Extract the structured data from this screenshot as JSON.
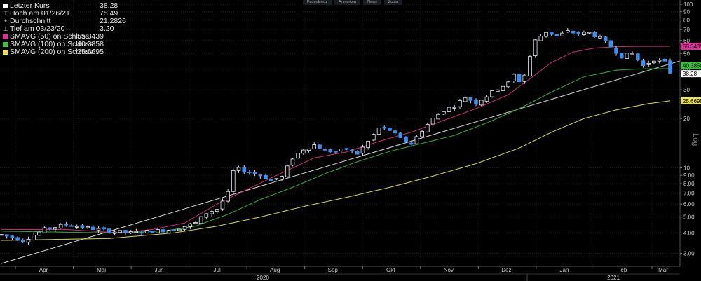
{
  "legend": [
    {
      "marker": "square",
      "color": "#ffffff",
      "label": "Letzter Kurs",
      "value": "38.28"
    },
    {
      "marker": "tee",
      "color": "#bbbbbb",
      "label": "Hoch am 01/26/21",
      "value": "75.49"
    },
    {
      "marker": "plus",
      "color": "#bbbbbb",
      "label": "Durchschnitt",
      "value": "21.2826"
    },
    {
      "marker": "bottom",
      "color": "#bbbbbb",
      "label": "Tief am 03/23/20",
      "value": "3.20"
    },
    {
      "marker": "square",
      "color": "#e0339a",
      "label": "SMAVG (50)  on Schluss",
      "value": "55.3439"
    },
    {
      "marker": "square",
      "color": "#3fbf3f",
      "label": "SMAVG (100)  on Schluss",
      "value": "40.3858"
    },
    {
      "marker": "square",
      "color": "#e8e060",
      "label": "SMAVG (200)  on Schluss",
      "value": "25.6695"
    }
  ],
  "toolbar": [
    "Fadenkreuz",
    "Anmerken",
    "News",
    "Zoom"
  ],
  "chart_data": {
    "type": "candlestick",
    "scale": "log",
    "ylim": [
      2.5,
      100
    ],
    "y_ticks": [
      {
        "v": 100,
        "label": "100"
      },
      {
        "v": 90,
        "label": "90"
      },
      {
        "v": 80,
        "label": "80"
      },
      {
        "v": 70,
        "label": "70"
      },
      {
        "v": 60,
        "label": "60"
      },
      {
        "v": 50,
        "label": "50"
      },
      {
        "v": 40,
        "label": "40"
      },
      {
        "v": 30,
        "label": "30"
      },
      {
        "v": 20,
        "label": "20"
      },
      {
        "v": 10,
        "label": "10"
      },
      {
        "v": 9,
        "label": "9.00"
      },
      {
        "v": 8,
        "label": "8.00"
      },
      {
        "v": 7,
        "label": "7.00"
      },
      {
        "v": 6,
        "label": "6.00"
      },
      {
        "v": 5,
        "label": "5.00"
      },
      {
        "v": 4,
        "label": "4.00"
      },
      {
        "v": 3,
        "label": "3.00"
      }
    ],
    "x_months": [
      "Apr",
      "Mai",
      "Jun",
      "Jul",
      "Aug",
      "Sep",
      "Okt",
      "Nov",
      "Dez",
      "Jan",
      "Feb",
      "Mär"
    ],
    "x_years": [
      "2020",
      "2021"
    ],
    "axis_label": "Log",
    "last_price_tag": "38.28",
    "sma_tags": {
      "sma50": "55.3439",
      "sma100": "40.3858",
      "sma200": "25.6695"
    },
    "price_anchors": [
      [
        0,
        3.9
      ],
      [
        4,
        3.6
      ],
      [
        8,
        4.2
      ],
      [
        12,
        4.5
      ],
      [
        16,
        4.3
      ],
      [
        20,
        4.1
      ],
      [
        24,
        4.0
      ],
      [
        28,
        4.1
      ],
      [
        32,
        4.2
      ],
      [
        36,
        4.6
      ],
      [
        38,
        5.3
      ],
      [
        40,
        5.6
      ],
      [
        42,
        7.0
      ],
      [
        43,
        9.5
      ],
      [
        44,
        9.8
      ],
      [
        46,
        9.4
      ],
      [
        48,
        9.0
      ],
      [
        50,
        8.4
      ],
      [
        52,
        8.8
      ],
      [
        54,
        11.5
      ],
      [
        56,
        13.0
      ],
      [
        58,
        13.8
      ],
      [
        60,
        12.8
      ],
      [
        62,
        12.5
      ],
      [
        64,
        13.0
      ],
      [
        66,
        12.2
      ],
      [
        68,
        14.5
      ],
      [
        70,
        17.5
      ],
      [
        72,
        17.0
      ],
      [
        74,
        15.0
      ],
      [
        76,
        14.0
      ],
      [
        78,
        17.0
      ],
      [
        80,
        20.0
      ],
      [
        82,
        22.5
      ],
      [
        84,
        24.0
      ],
      [
        86,
        27.0
      ],
      [
        88,
        25.0
      ],
      [
        90,
        27.5
      ],
      [
        92,
        30.5
      ],
      [
        94,
        33.0
      ],
      [
        95,
        37.0
      ],
      [
        96,
        34.0
      ],
      [
        97,
        37.0
      ],
      [
        98,
        48.0
      ],
      [
        99,
        60.0
      ],
      [
        101,
        68.0
      ],
      [
        103,
        64.0
      ],
      [
        105,
        68.0
      ],
      [
        107,
        66.0
      ],
      [
        109,
        67.0
      ],
      [
        111,
        62.0
      ],
      [
        113,
        55.0
      ],
      [
        115,
        48.0
      ],
      [
        117,
        50.0
      ],
      [
        119,
        42.0
      ],
      [
        121,
        46.0
      ],
      [
        123,
        44.0
      ],
      [
        124,
        38.3
      ]
    ],
    "sma50_anchors": [
      [
        0,
        4.2
      ],
      [
        12,
        4.2
      ],
      [
        22,
        4.0
      ],
      [
        28,
        4.2
      ],
      [
        34,
        4.6
      ],
      [
        40,
        6.0
      ],
      [
        46,
        7.5
      ],
      [
        52,
        9.3
      ],
      [
        58,
        11.5
      ],
      [
        64,
        12.5
      ],
      [
        70,
        14.5
      ],
      [
        76,
        16.5
      ],
      [
        82,
        19.5
      ],
      [
        88,
        23.0
      ],
      [
        94,
        28.0
      ],
      [
        98,
        35.0
      ],
      [
        102,
        44.0
      ],
      [
        106,
        51.0
      ],
      [
        110,
        54.0
      ],
      [
        114,
        55.0
      ],
      [
        118,
        55.3
      ],
      [
        124,
        55.3
      ]
    ],
    "sma100_anchors": [
      [
        0,
        4.1
      ],
      [
        20,
        4.0
      ],
      [
        30,
        4.1
      ],
      [
        36,
        4.4
      ],
      [
        42,
        5.2
      ],
      [
        48,
        6.4
      ],
      [
        54,
        7.6
      ],
      [
        60,
        9.2
      ],
      [
        66,
        10.9
      ],
      [
        72,
        12.6
      ],
      [
        78,
        14.1
      ],
      [
        84,
        15.8
      ],
      [
        90,
        18.8
      ],
      [
        96,
        23.0
      ],
      [
        102,
        29.0
      ],
      [
        108,
        36.0
      ],
      [
        114,
        39.5
      ],
      [
        118,
        40.2
      ],
      [
        124,
        40.4
      ]
    ],
    "sma200_anchors": [
      [
        0,
        3.6
      ],
      [
        20,
        3.7
      ],
      [
        32,
        4.0
      ],
      [
        40,
        4.4
      ],
      [
        48,
        5.0
      ],
      [
        56,
        5.8
      ],
      [
        64,
        6.6
      ],
      [
        72,
        7.6
      ],
      [
        80,
        8.9
      ],
      [
        88,
        10.6
      ],
      [
        96,
        13.2
      ],
      [
        102,
        16.5
      ],
      [
        108,
        20.0
      ],
      [
        114,
        22.6
      ],
      [
        120,
        24.7
      ],
      [
        124,
        25.7
      ]
    ],
    "trendline": [
      [
        0,
        2.6
      ],
      [
        124,
        45.0
      ]
    ]
  }
}
